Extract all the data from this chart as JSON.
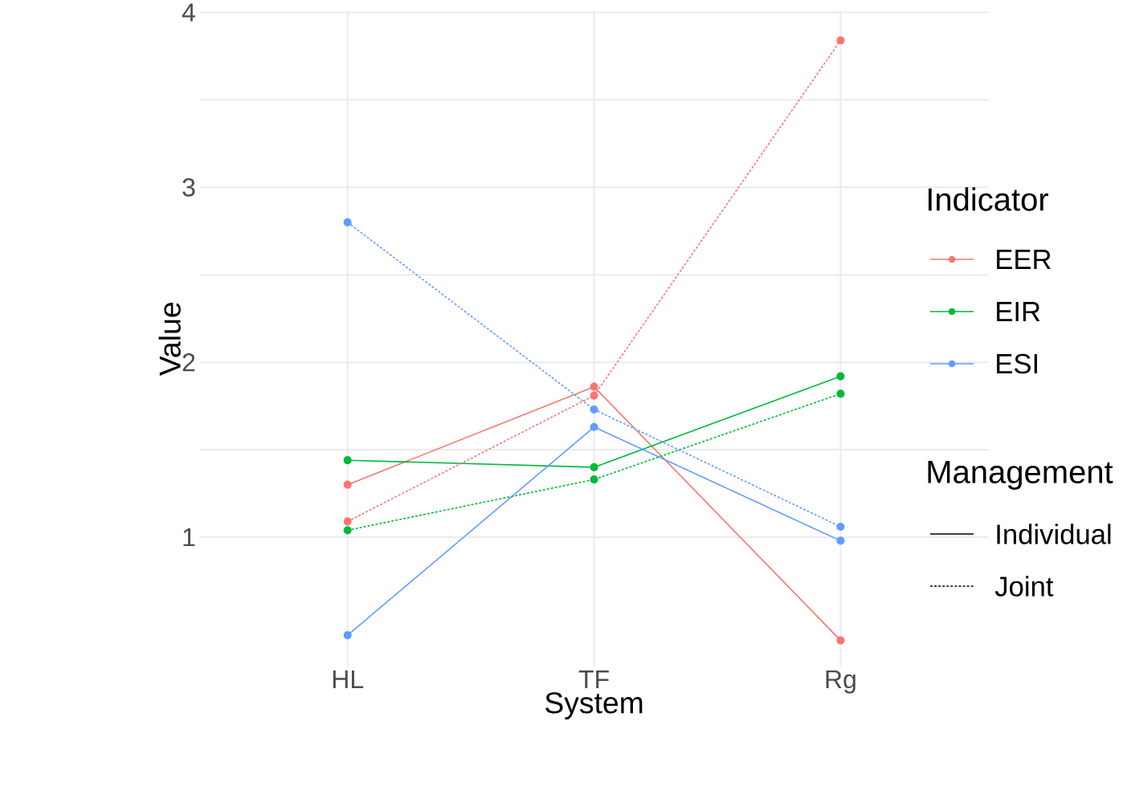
{
  "chart_data": {
    "type": "line",
    "xlabel": "System",
    "ylabel": "Value",
    "legend_title": "Indicator",
    "categories": [
      "HL",
      "TF",
      "Rg"
    ],
    "ylim": [
      0.26,
      4.01
    ],
    "yticks": [
      1,
      2,
      3,
      4
    ],
    "grid": true,
    "legend": "right",
    "marker": "circle",
    "series": [
      {
        "name": "EER",
        "color": "#f8766d",
        "line_style": "solid",
        "values": [
          1.3,
          1.86,
          0.41
        ]
      },
      {
        "name": "EIR",
        "color": "#00ba38",
        "line_style": "solid",
        "values": [
          1.44,
          1.4,
          1.92
        ]
      },
      {
        "name": "ESI",
        "color": "#619cff",
        "line_style": "solid",
        "values": [
          0.44,
          1.63,
          0.98
        ]
      },
      {
        "color": "#f8766d",
        "line_style": "dotted",
        "values": [
          1.09,
          1.81,
          3.84
        ]
      },
      {
        "color": "#00ba38",
        "line_style": "dotted",
        "values": [
          1.04,
          1.33,
          1.82
        ]
      },
      {
        "color": "#619cff",
        "line_style": "dotted",
        "values": [
          2.8,
          1.73,
          1.06
        ]
      }
    ],
    "annotations": [
      "Management",
      "Individual",
      "Joint"
    ]
  }
}
